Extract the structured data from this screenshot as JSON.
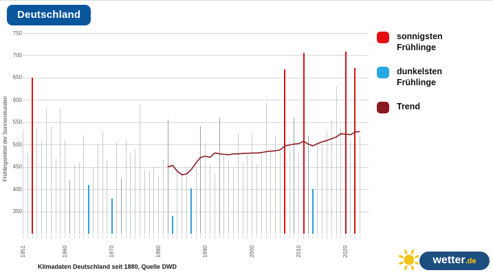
{
  "header": {
    "title": "Deutschland"
  },
  "legend": {
    "items": [
      {
        "id": "sunniest",
        "label": "sonnigsten\nFrühlinge",
        "color": "#e30d13"
      },
      {
        "id": "darkest",
        "label": "dunkelsten\nFrühlinge",
        "color": "#29a9e1"
      },
      {
        "id": "trend",
        "label": "Trend",
        "color": "#8b1a1f"
      }
    ]
  },
  "caption": {
    "text": "Klimadaten Deutschland seit 1880, Quelle DWD"
  },
  "logo": {
    "word": "wetter",
    "tld": ".de",
    "icon": "sun-icon",
    "pill_color": "#1c4e80",
    "accent_color": "#ffcc00",
    "sun_color": "#f2c318"
  },
  "chart_data": {
    "type": "bar",
    "title": "Deutschland",
    "xlabel": "",
    "ylabel": "Frühlingsmittel der Sonnenstunden",
    "ylim": [
      300,
      760
    ],
    "yticks": [
      350,
      400,
      450,
      500,
      550,
      600,
      650,
      700,
      750
    ],
    "xticks": [
      1951,
      1960,
      1970,
      1980,
      1990,
      2000,
      2010,
      2020
    ],
    "grid": "horizontal",
    "legend_position": "right",
    "year_start": 1951,
    "year_end": 2023,
    "values": [
      535,
      480,
      650,
      538,
      510,
      580,
      540,
      470,
      580,
      510,
      420,
      455,
      460,
      520,
      410,
      450,
      500,
      530,
      465,
      378,
      505,
      425,
      510,
      480,
      490,
      592,
      445,
      440,
      450,
      430,
      465,
      556,
      340,
      445,
      440,
      445,
      402,
      450,
      540,
      505,
      455,
      435,
      560,
      475,
      465,
      450,
      525,
      460,
      475,
      525,
      455,
      480,
      595,
      490,
      520,
      480,
      669,
      505,
      560,
      480,
      705,
      520,
      400,
      505,
      500,
      530,
      555,
      630,
      540,
      709,
      510,
      672,
      520
    ],
    "sunniest_years": [
      1953,
      2007,
      2011,
      2020,
      2022
    ],
    "darkest_years": [
      1965,
      1970,
      1983,
      1987,
      2013
    ],
    "emphasized_gray_years": [
      1961,
      1972,
      1982,
      1989,
      1993,
      2009,
      2012
    ],
    "bar_color": "#c6cacf",
    "emphasized_bar_color": "#9aa0a6",
    "sunniest_color": "#cf1318",
    "darkest_color": "#2e9fd4",
    "trend_color": "#8b1a1f",
    "trend": {
      "name": "Trend",
      "year_start": 1982,
      "values": [
        450,
        453,
        440,
        432,
        434,
        444,
        459,
        471,
        474,
        471,
        481,
        479,
        478,
        477,
        479,
        479,
        480,
        480,
        481,
        481,
        482,
        484,
        485,
        486,
        488,
        497,
        499,
        501,
        502,
        507,
        501,
        497,
        502,
        506,
        509,
        513,
        517,
        524,
        523,
        522,
        528,
        529
      ]
    },
    "source_note": "Klimadaten Deutschland seit 1880, Quelle DWD"
  }
}
